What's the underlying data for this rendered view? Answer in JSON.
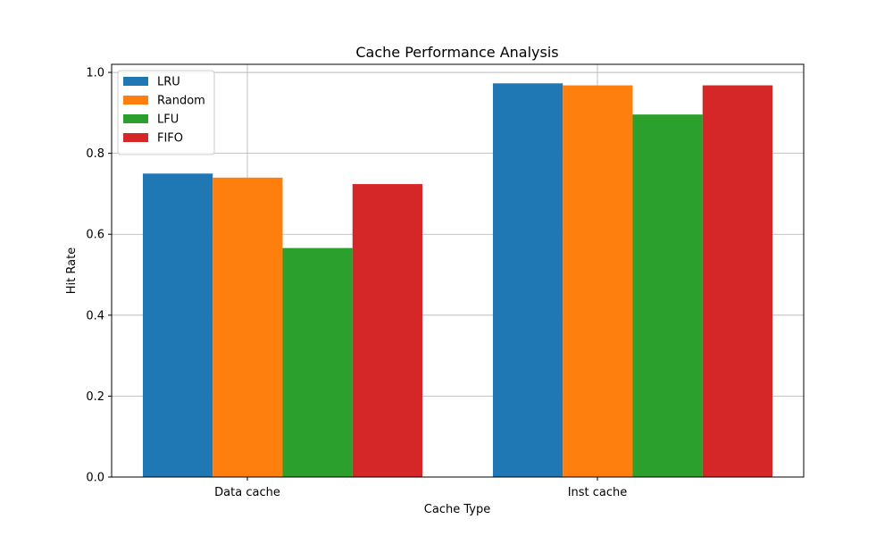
{
  "chart_data": {
    "type": "bar",
    "title": "Cache Performance Analysis",
    "xlabel": "Cache Type",
    "ylabel": "Hit Rate",
    "categories": [
      "Data cache",
      "Inst cache"
    ],
    "series": [
      {
        "name": "LRU",
        "values": [
          0.75,
          0.973
        ],
        "color": "#1f77b4"
      },
      {
        "name": "Random",
        "values": [
          0.74,
          0.968
        ],
        "color": "#ff7f0e"
      },
      {
        "name": "LFU",
        "values": [
          0.566,
          0.896
        ],
        "color": "#2ca02c"
      },
      {
        "name": "FIFO",
        "values": [
          0.724,
          0.968
        ],
        "color": "#d62728"
      }
    ],
    "ylim": [
      0,
      1.02
    ],
    "yticks": [
      0.0,
      0.2,
      0.4,
      0.6,
      0.8,
      1.0
    ],
    "ytick_labels": [
      "0.0",
      "0.2",
      "0.4",
      "0.6",
      "0.8",
      "1.0"
    ],
    "grid": true,
    "legend_position": "top-left"
  }
}
